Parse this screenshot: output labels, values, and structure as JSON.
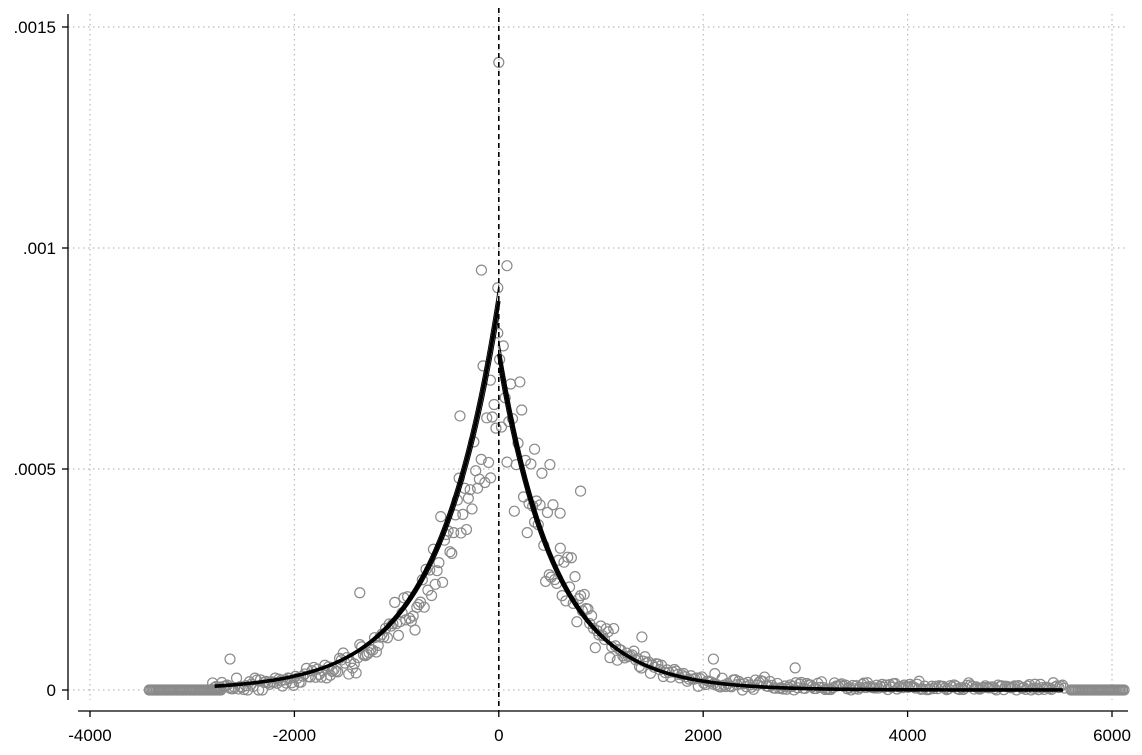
{
  "chart_data": {
    "type": "scatter",
    "title": "",
    "xlabel": "",
    "ylabel": "",
    "xlim": [
      -4000,
      6200
    ],
    "ylim": [
      0,
      0.0015
    ],
    "grid": true,
    "reference_line": {
      "x": 0,
      "style": "dashed"
    },
    "x_ticks": [
      {
        "value": -4000,
        "label": "-4000"
      },
      {
        "value": -2000,
        "label": "-2000"
      },
      {
        "value": 0,
        "label": "0"
      },
      {
        "value": 2000,
        "label": "2000"
      },
      {
        "value": 4000,
        "label": "4000"
      },
      {
        "value": 6000,
        "label": "6000"
      }
    ],
    "y_ticks": [
      {
        "value": 0,
        "label": "0"
      },
      {
        "value": 0.0005,
        "label": ".0005"
      },
      {
        "value": 0.001,
        "label": ".001"
      },
      {
        "value": 0.0015,
        "label": ".0015"
      }
    ],
    "colors": {
      "markers": "#8a8a8a",
      "fit": "#000000",
      "grid": "#bbbbbb",
      "axis": "#000000"
    },
    "outlier_points": [
      {
        "x": 0,
        "y": 0.00142
      },
      {
        "x": 80,
        "y": 0.00096
      },
      {
        "x": -170,
        "y": 0.00095
      },
      {
        "x": -10,
        "y": 0.00091
      },
      {
        "x": -1360,
        "y": 0.00022
      },
      {
        "x": 500,
        "y": 0.00051
      },
      {
        "x": 800,
        "y": 0.00045
      },
      {
        "x": -2630,
        "y": 7e-05
      },
      {
        "x": -380,
        "y": 0.00062
      },
      {
        "x": 350,
        "y": 0.00038
      },
      {
        "x": 600,
        "y": 0.0004
      },
      {
        "x": -80,
        "y": 0.00048
      },
      {
        "x": 1400,
        "y": 0.00012
      },
      {
        "x": 2100,
        "y": 7e-05
      },
      {
        "x": 2900,
        "y": 5e-05
      }
    ],
    "scatter_model": {
      "peak": 0.00078,
      "left_decay": 590,
      "right_decay": 560,
      "noise": 0.22,
      "left_start": -2800,
      "right_end": 5550,
      "step": 18,
      "zero_band_left": [
        -3420,
        -2720
      ],
      "zero_band_right": [
        5600,
        6120
      ]
    },
    "series": [
      {
        "side": "left",
        "x_start": -2780,
        "x_end": 0,
        "peak": 0.00088,
        "decay": 600
      },
      {
        "side": "right",
        "x_start": 0,
        "x_end": 5520,
        "peak": 0.00076,
        "decay": 550
      }
    ]
  }
}
